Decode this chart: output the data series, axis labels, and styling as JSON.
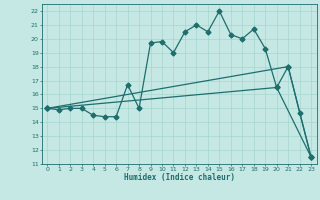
{
  "xlabel": "Humidex (Indice chaleur)",
  "xlim": [
    -0.5,
    23.5
  ],
  "ylim": [
    11,
    22.5
  ],
  "yticks": [
    11,
    12,
    13,
    14,
    15,
    16,
    17,
    18,
    19,
    20,
    21,
    22
  ],
  "xticks": [
    0,
    1,
    2,
    3,
    4,
    5,
    6,
    7,
    8,
    9,
    10,
    11,
    12,
    13,
    14,
    15,
    16,
    17,
    18,
    19,
    20,
    21,
    22,
    23
  ],
  "bg_color": "#c5e8e4",
  "grid_color": "#a8d4ce",
  "line_color": "#1e6e6e",
  "line1_x": [
    0,
    1,
    2,
    3,
    4,
    5,
    6,
    7,
    8,
    9,
    10,
    11,
    12,
    13,
    14,
    15,
    16,
    17,
    18,
    19,
    20,
    21,
    22,
    23
  ],
  "line1_y": [
    15,
    14.9,
    15.0,
    15.0,
    14.5,
    14.4,
    14.4,
    16.7,
    15.0,
    19.7,
    19.8,
    19.0,
    20.5,
    21.0,
    20.5,
    22.0,
    20.3,
    20.0,
    20.7,
    19.3,
    16.5,
    18.0,
    14.7,
    11.5
  ],
  "line2_x": [
    0,
    21,
    23
  ],
  "line2_y": [
    15,
    18.0,
    11.5
  ],
  "line3_x": [
    0,
    20,
    23
  ],
  "line3_y": [
    15,
    16.5,
    11.5
  ]
}
